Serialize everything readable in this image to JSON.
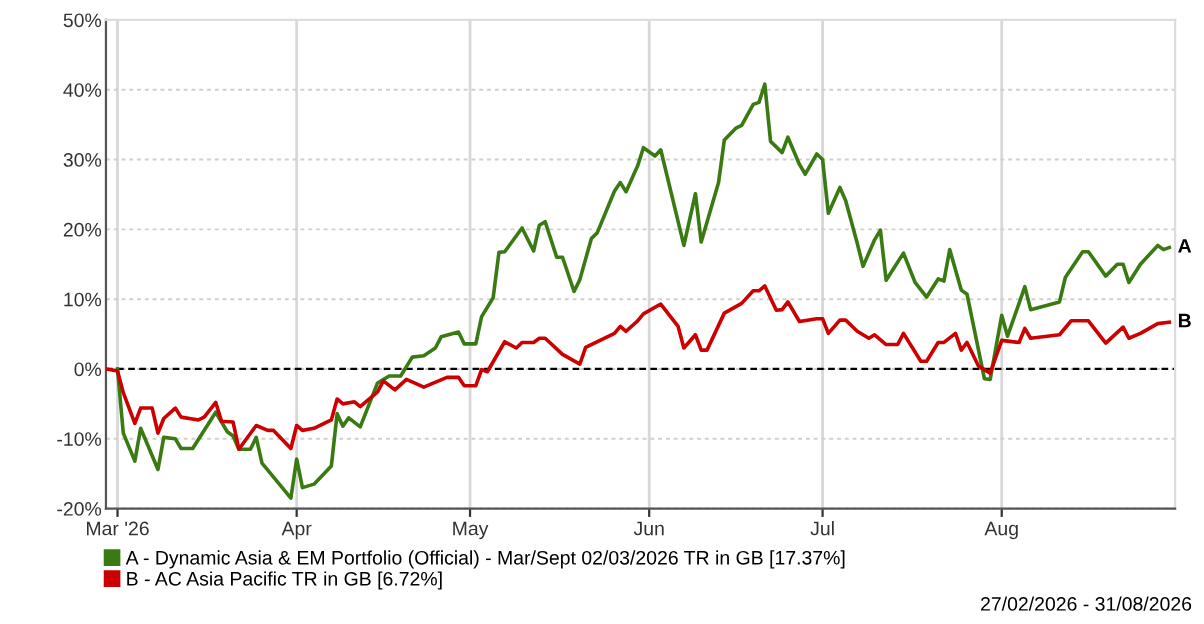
{
  "chart_data": {
    "type": "line",
    "xlim": [
      "2026-02-27",
      "2026-08-31"
    ],
    "xticks": [
      {
        "value": "2026-03-01",
        "label": "Mar '26"
      },
      {
        "value": "2026-04-01",
        "label": "Apr"
      },
      {
        "value": "2026-05-01",
        "label": "May"
      },
      {
        "value": "2026-06-01",
        "label": "Jun"
      },
      {
        "value": "2026-07-01",
        "label": "Jul"
      },
      {
        "value": "2026-08-01",
        "label": "Aug"
      }
    ],
    "ylim": [
      -20,
      50
    ],
    "yticks": [
      {
        "value": -20,
        "label": "-20%"
      },
      {
        "value": -10,
        "label": "-10%"
      },
      {
        "value": 0,
        "label": "0%"
      },
      {
        "value": 10,
        "label": "10%"
      },
      {
        "value": 20,
        "label": "20%"
      },
      {
        "value": 30,
        "label": "30%"
      },
      {
        "value": 40,
        "label": "40%"
      },
      {
        "value": 50,
        "label": "50%"
      }
    ],
    "grid": true,
    "legend": "bottom",
    "marker": "none",
    "line_style": "solid",
    "ref_lines": [
      {
        "axis": "y",
        "value": 0,
        "color": "#000000",
        "line_style": "dashed"
      }
    ],
    "series": [
      {
        "name": "A - Dynamic Asia & EM Portfolio (Official) - Mar/Sept 02/03/2026 TR in GB [17.37%]",
        "color": "#3a7a12",
        "x": [
          "2026-03-01",
          "2026-03-02",
          "2026-03-04",
          "2026-03-05",
          "2026-03-08",
          "2026-03-09",
          "2026-03-11",
          "2026-03-12",
          "2026-03-14",
          "2026-03-18",
          "2026-03-20",
          "2026-03-21",
          "2026-03-22",
          "2026-03-24",
          "2026-03-25",
          "2026-03-26",
          "2026-03-29",
          "2026-03-31",
          "2026-04-01",
          "2026-04-02",
          "2026-04-04",
          "2026-04-07",
          "2026-04-08",
          "2026-04-09",
          "2026-04-10",
          "2026-04-12",
          "2026-04-15",
          "2026-04-17",
          "2026-04-19",
          "2026-04-21",
          "2026-04-23",
          "2026-04-25",
          "2026-04-26",
          "2026-04-29",
          "2026-04-30",
          "2026-05-02",
          "2026-05-03",
          "2026-05-05",
          "2026-05-06",
          "2026-05-07",
          "2026-05-10",
          "2026-05-12",
          "2026-05-13",
          "2026-05-14",
          "2026-05-16",
          "2026-05-17",
          "2026-05-19",
          "2026-05-20",
          "2026-05-22",
          "2026-05-23",
          "2026-05-26",
          "2026-05-27",
          "2026-05-28",
          "2026-05-30",
          "2026-05-31",
          "2026-06-02",
          "2026-06-03",
          "2026-06-07",
          "2026-06-09",
          "2026-06-10",
          "2026-06-13",
          "2026-06-14",
          "2026-06-16",
          "2026-06-17",
          "2026-06-19",
          "2026-06-20",
          "2026-06-21",
          "2026-06-22",
          "2026-06-24",
          "2026-06-25",
          "2026-06-27",
          "2026-06-28",
          "2026-06-30",
          "2026-07-01",
          "2026-07-02",
          "2026-07-04",
          "2026-07-05",
          "2026-07-07",
          "2026-07-08",
          "2026-07-10",
          "2026-07-11",
          "2026-07-12",
          "2026-07-15",
          "2026-07-17",
          "2026-07-19",
          "2026-07-21",
          "2026-07-22",
          "2026-07-23",
          "2026-07-25",
          "2026-07-26",
          "2026-07-29",
          "2026-07-30",
          "2026-08-01",
          "2026-08-02",
          "2026-08-04",
          "2026-08-05",
          "2026-08-06",
          "2026-08-11",
          "2026-08-12",
          "2026-08-15",
          "2026-08-16",
          "2026-08-19",
          "2026-08-21",
          "2026-08-22",
          "2026-08-23",
          "2026-08-25",
          "2026-08-26",
          "2026-08-28",
          "2026-08-29",
          "2026-08-30"
        ],
        "values": [
          0,
          -9.2,
          -13.2,
          -8.5,
          -14.4,
          -9.8,
          -10,
          -11.4,
          -11.4,
          -6.2,
          -9.0,
          -9.6,
          -11.5,
          -11.5,
          -9.8,
          -13.5,
          -16.5,
          -18.5,
          -12.9,
          -17.0,
          -16.5,
          -13.9,
          -6.4,
          -8.2,
          -7.0,
          -8.3,
          -2.0,
          -1.0,
          -1.0,
          1.7,
          1.9,
          3.0,
          4.6,
          5.3,
          3.6,
          3.6,
          7.5,
          10.2,
          16.7,
          16.8,
          20.2,
          16.9,
          20.6,
          21.1,
          16.0,
          16.0,
          11.1,
          12.8,
          18.7,
          19.5,
          25.5,
          26.7,
          25.4,
          29.1,
          31.7,
          30.5,
          31.4,
          17.7,
          25.1,
          18.2,
          26.7,
          32.8,
          34.5,
          34.9,
          37.9,
          38.2,
          40.8,
          32.6,
          31.0,
          33.2,
          29.3,
          27.9,
          30.8,
          30.0,
          22.3,
          26.0,
          24.1,
          18.0,
          14.7,
          18.5,
          19.9,
          12.7,
          16.6,
          12.4,
          10.3,
          12.9,
          12.6,
          17.1,
          11.3,
          10.7,
          -1.4,
          -1.5,
          7.7,
          4.7,
          9.4,
          11.8,
          8.5,
          9.6,
          13.1,
          16.8,
          16.8,
          13.3,
          15.0,
          15.0,
          12.4,
          15.0,
          15.9,
          17.7,
          17.1,
          17.4
        ]
      },
      {
        "name": "B - AC Asia Pacific TR in GB [6.72%]",
        "color": "#cc0000",
        "x": [
          "2026-02-27",
          "2026-03-01",
          "2026-03-02",
          "2026-03-04",
          "2026-03-05",
          "2026-03-07",
          "2026-03-08",
          "2026-03-09",
          "2026-03-11",
          "2026-03-12",
          "2026-03-15",
          "2026-03-16",
          "2026-03-18",
          "2026-03-19",
          "2026-03-21",
          "2026-03-22",
          "2026-03-25",
          "2026-03-27",
          "2026-03-28",
          "2026-03-31",
          "2026-04-01",
          "2026-04-02",
          "2026-04-04",
          "2026-04-07",
          "2026-04-08",
          "2026-04-09",
          "2026-04-11",
          "2026-04-12",
          "2026-04-15",
          "2026-04-16",
          "2026-04-18",
          "2026-04-20",
          "2026-04-23",
          "2026-04-27",
          "2026-04-29",
          "2026-04-30",
          "2026-05-02",
          "2026-05-03",
          "2026-05-04",
          "2026-05-07",
          "2026-05-09",
          "2026-05-10",
          "2026-05-12",
          "2026-05-13",
          "2026-05-14",
          "2026-05-17",
          "2026-05-20",
          "2026-05-21",
          "2026-05-26",
          "2026-05-27",
          "2026-05-28",
          "2026-05-30",
          "2026-05-31",
          "2026-06-03",
          "2026-06-06",
          "2026-06-07",
          "2026-06-09",
          "2026-06-10",
          "2026-06-11",
          "2026-06-14",
          "2026-06-17",
          "2026-06-19",
          "2026-06-20",
          "2026-06-21",
          "2026-06-23",
          "2026-06-24",
          "2026-06-25",
          "2026-06-27",
          "2026-06-30",
          "2026-07-01",
          "2026-07-02",
          "2026-07-04",
          "2026-07-05",
          "2026-07-07",
          "2026-07-09",
          "2026-07-10",
          "2026-07-12",
          "2026-07-14",
          "2026-07-15",
          "2026-07-18",
          "2026-07-19",
          "2026-07-21",
          "2026-07-22",
          "2026-07-24",
          "2026-07-25",
          "2026-07-26",
          "2026-07-28",
          "2026-07-29",
          "2026-07-30",
          "2026-08-01",
          "2026-08-04",
          "2026-08-05",
          "2026-08-06",
          "2026-08-11",
          "2026-08-13",
          "2026-08-16",
          "2026-08-19",
          "2026-08-22",
          "2026-08-23",
          "2026-08-25",
          "2026-08-28",
          "2026-08-30"
        ],
        "values": [
          0,
          -0.3,
          -3.4,
          -7.8,
          -5.6,
          -5.6,
          -9.2,
          -7.1,
          -5.6,
          -6.9,
          -7.3,
          -6.9,
          -4.8,
          -7.5,
          -7.6,
          -11.5,
          -8.1,
          -8.8,
          -8.8,
          -11.4,
          -8.1,
          -8.8,
          -8.5,
          -7.3,
          -4.3,
          -5.0,
          -4.7,
          -5.4,
          -3.3,
          -1.7,
          -3.0,
          -1.5,
          -2.6,
          -1.2,
          -1.2,
          -2.4,
          -2.4,
          -0.1,
          -0.4,
          3.9,
          3.0,
          3.8,
          3.8,
          4.4,
          4.4,
          2.1,
          0.7,
          3.1,
          5.1,
          6.1,
          5.4,
          6.9,
          7.9,
          9.3,
          6.1,
          3.0,
          4.9,
          2.7,
          2.7,
          8.0,
          9.4,
          11.2,
          11.2,
          11.9,
          8.4,
          8.5,
          9.6,
          6.8,
          7.2,
          7.2,
          5.1,
          7.0,
          7.0,
          5.4,
          4.4,
          4.9,
          3.5,
          3.5,
          5.1,
          1.1,
          1.1,
          3.8,
          3.8,
          5.1,
          2.7,
          3.8,
          0.4,
          -0.1,
          -0.6,
          4.1,
          3.8,
          5.8,
          4.4,
          4.9,
          6.9,
          6.9,
          3.7,
          6.0,
          4.4,
          5.1,
          6.5,
          6.7
        ]
      }
    ],
    "annotations": [
      {
        "text": "A",
        "x": "2026-08-30",
        "y": 17.4
      },
      {
        "text": "B",
        "x": "2026-08-30",
        "y": 6.7
      },
      "27/02/2026 - 31/08/2026"
    ]
  }
}
